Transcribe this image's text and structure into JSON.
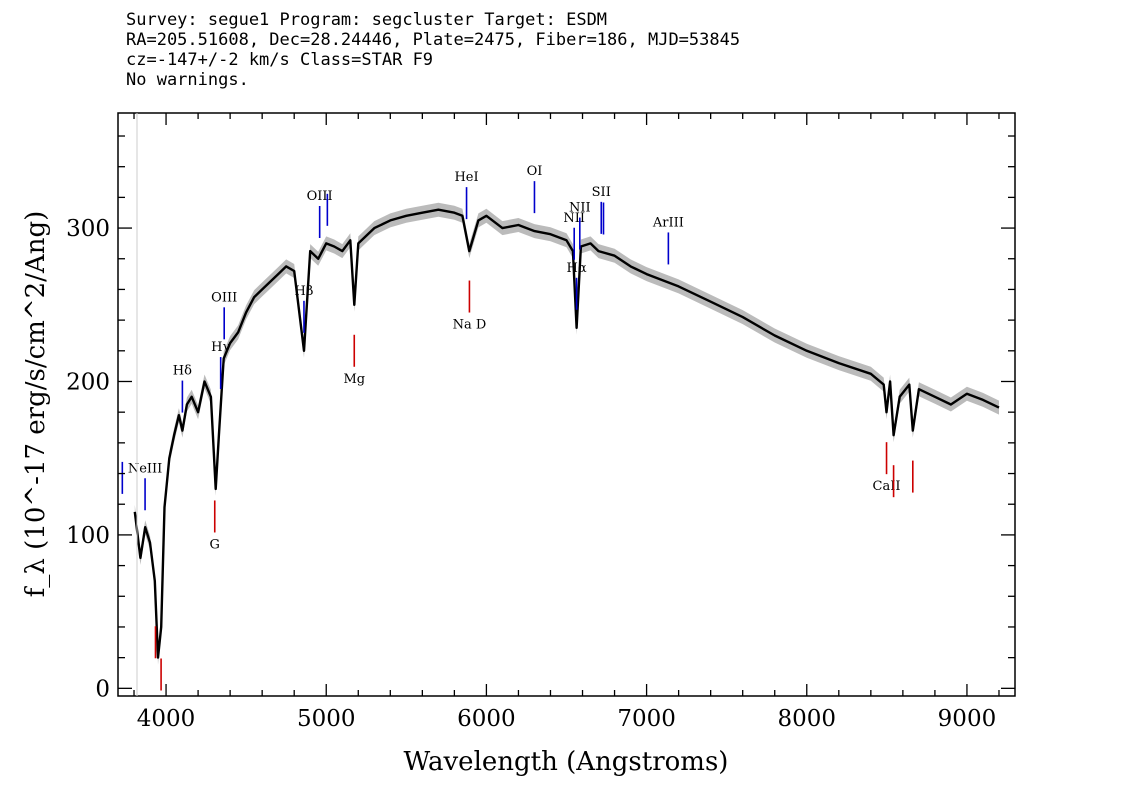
{
  "header": {
    "line1": "Survey: segue1 Program: segcluster Target: ESDM",
    "line2": "RA=205.51608, Dec=28.24446, Plate=2475, Fiber=186, MJD=53845",
    "line3": "cz=-147+/-2 km/s Class=STAR F9",
    "line4": "No warnings."
  },
  "chart_data": {
    "type": "line",
    "xlabel": "Wavelength (Angstroms)",
    "ylabel": "f_λ (10^-17 erg/s/cm^2/Ang)",
    "xlim": [
      3700,
      9300
    ],
    "ylim": [
      -5,
      375
    ],
    "x_ticks": [
      4000,
      5000,
      6000,
      7000,
      8000,
      9000
    ],
    "y_ticks": [
      0,
      100,
      200,
      300
    ],
    "colors": {
      "spectrum": "#000000",
      "error_band": "#bbbbbb",
      "emission": "#0000cc",
      "absorption": "#cc0000"
    },
    "series": [
      {
        "x": [
          3805,
          3840,
          3870,
          3900,
          3930,
          3950,
          3970,
          3990,
          4020,
          4050,
          4080,
          4102,
          4130,
          4160,
          4200,
          4240,
          4280,
          4310,
          4330,
          4360,
          4400,
          4450,
          4500,
          4550,
          4600,
          4650,
          4700,
          4750,
          4800,
          4861,
          4900,
          4950,
          5000,
          5050,
          5100,
          5150,
          5175,
          5200,
          5300,
          5400,
          5500,
          5600,
          5700,
          5800,
          5850,
          5893,
          5950,
          6000,
          6100,
          6200,
          6300,
          6400,
          6500,
          6540,
          6563,
          6590,
          6650,
          6700,
          6800,
          6900,
          7000,
          7200,
          7400,
          7600,
          7800,
          8000,
          8200,
          8400,
          8480,
          8498,
          8520,
          8542,
          8580,
          8640,
          8662,
          8700,
          8800,
          8900,
          9000,
          9100,
          9200
        ],
        "y": [
          115,
          85,
          105,
          95,
          70,
          20,
          40,
          118,
          150,
          165,
          178,
          168,
          185,
          190,
          180,
          200,
          190,
          130,
          165,
          215,
          225,
          232,
          245,
          255,
          260,
          265,
          270,
          275,
          272,
          220,
          285,
          280,
          290,
          288,
          285,
          292,
          250,
          290,
          300,
          305,
          308,
          310,
          312,
          310,
          308,
          285,
          305,
          308,
          300,
          302,
          298,
          296,
          292,
          285,
          235,
          288,
          290,
          285,
          282,
          275,
          270,
          262,
          252,
          242,
          230,
          220,
          212,
          205,
          198,
          180,
          200,
          165,
          190,
          198,
          168,
          195,
          190,
          185,
          192,
          188,
          183
        ]
      }
    ],
    "emission_lines": [
      {
        "label": "",
        "wave": 3727
      },
      {
        "label": "NeIII",
        "wave": 3869
      },
      {
        "label": "Hδ",
        "wave": 4102
      },
      {
        "label": "Hγ",
        "wave": 4341
      },
      {
        "label": "OIII",
        "wave": 4363
      },
      {
        "label": "Hβ",
        "wave": 4861
      },
      {
        "label": "OIII",
        "wave": 4959
      },
      {
        "label": "",
        "wave": 5007
      },
      {
        "label": "HeI",
        "wave": 5876
      },
      {
        "label": "OI",
        "wave": 6300
      },
      {
        "label": "NII",
        "wave": 6548
      },
      {
        "label": "Hα",
        "wave": 6563
      },
      {
        "label": "NII",
        "wave": 6583
      },
      {
        "label": "SII",
        "wave": 6717
      },
      {
        "label": "",
        "wave": 6731
      },
      {
        "label": "ArIII",
        "wave": 7136
      }
    ],
    "absorption_lines": [
      {
        "label": "",
        "wave": 3934
      },
      {
        "label": "",
        "wave": 3969
      },
      {
        "label": "G",
        "wave": 4304
      },
      {
        "label": "Mg",
        "wave": 5175
      },
      {
        "label": "Na D",
        "wave": 5894
      },
      {
        "label": "CaII",
        "wave": 8498
      },
      {
        "label": "",
        "wave": 8542
      },
      {
        "label": "",
        "wave": 8662
      }
    ]
  }
}
